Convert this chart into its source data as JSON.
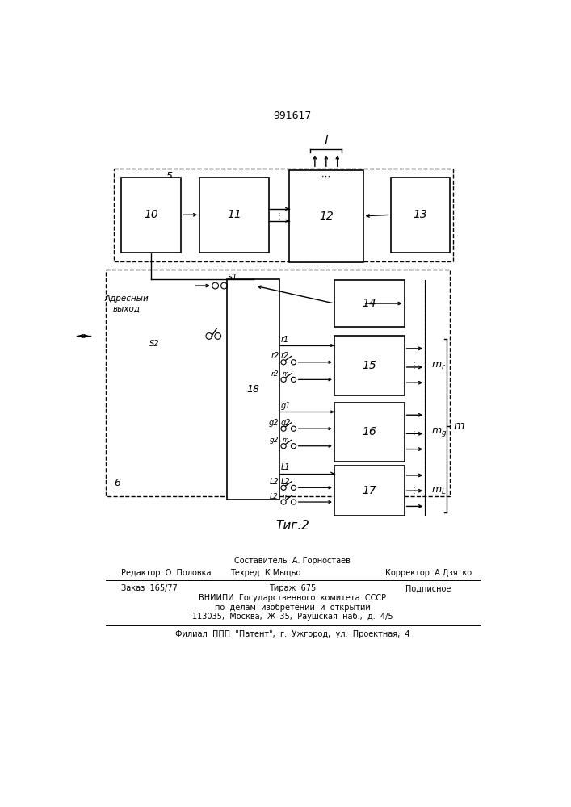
{
  "title": "991617",
  "fig_caption": "Τиг.2",
  "background": "#ffffff",
  "footer": {
    "sestavitel": "Составитель  А. Горностаев",
    "redaktor": "Редактор  О. Половка",
    "tehred": "Техред  К.Мыцьо",
    "korrektor": "Корректор  А.Дзятко",
    "zakaz": "Заказ  165/77",
    "tirazh": "Тираж  675",
    "podpisnoe": "Подписное",
    "vnipi1": "ВНИИПИ  Государственного  комитета  СССР",
    "vnipi2": "по  делам  изобретений  и  открытий",
    "vnipi3": "113035,  Москва,  Ж–35,  Раушская  наб.,  д.  4/5",
    "filial": "Филиал  ППП  \"Патент\",  г.  Ужгород,  ул.  Проектная,  4"
  }
}
